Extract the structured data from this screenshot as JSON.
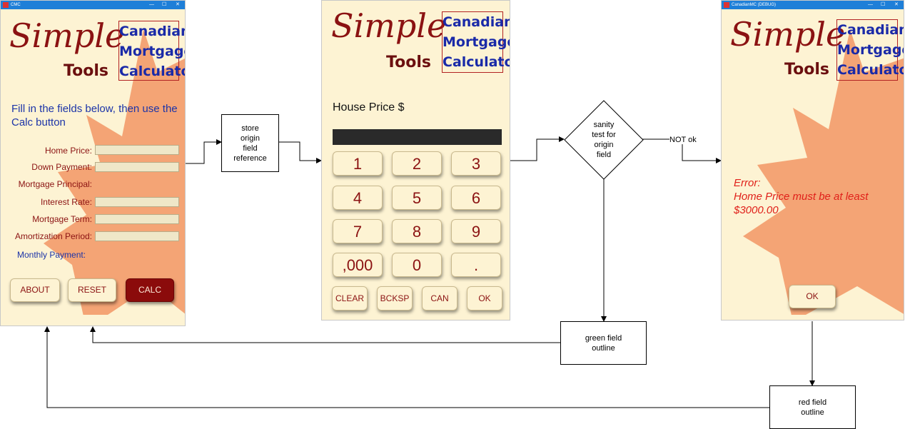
{
  "window1": {
    "title": "CMC",
    "brand": {
      "simple": "Simple",
      "tools": "Tools",
      "box": [
        "Canadian",
        "Mortgage",
        "Calculator"
      ]
    },
    "instructions": "Fill in the fields below, then use the Calc button",
    "fields": [
      "Home Price:",
      "Down Payment:",
      "Mortgage Principal:",
      "Interest Rate:",
      "Mortgage Term:",
      "Amortization Period:"
    ],
    "monthly_payment": "Monthly Payment:",
    "buttons": {
      "about": "ABOUT",
      "reset": "RESET",
      "calc": "CALC"
    }
  },
  "window2": {
    "brand": {
      "simple": "Simple",
      "tools": "Tools",
      "box": [
        "Canadian",
        "Mortgage",
        "Calculator"
      ]
    },
    "prompt": "House Price $",
    "keys": [
      "1",
      "2",
      "3",
      "4",
      "5",
      "6",
      "7",
      "8",
      "9",
      ",000",
      "0",
      "."
    ],
    "small_keys": [
      "CLEAR",
      "BCKSP",
      "CAN",
      "OK"
    ]
  },
  "window3": {
    "title": "CanadianMC (DEBUG)",
    "brand": {
      "simple": "Simple",
      "tools": "Tools",
      "box": [
        "Canadian",
        "Mortgage",
        "Calculator"
      ]
    },
    "error": [
      "Error:",
      "Home Price must be at least",
      "$3000.00"
    ],
    "ok": "OK"
  },
  "flow": {
    "store_box": "store\norigin\nfield\nreference",
    "sanity": "sanity\ntest for\norigin\nfield",
    "not_ok": "NOT ok",
    "green_box": "green field\noutline",
    "red_box": "red field\noutline"
  },
  "colors": {
    "panel_bg": "#fdf3d3",
    "brand_red": "#8b1212",
    "brand_blue": "#1a2aa8",
    "titlebar": "#1e7fd8",
    "calc_button": "#8b0b0b",
    "error_red": "#e0201a"
  }
}
